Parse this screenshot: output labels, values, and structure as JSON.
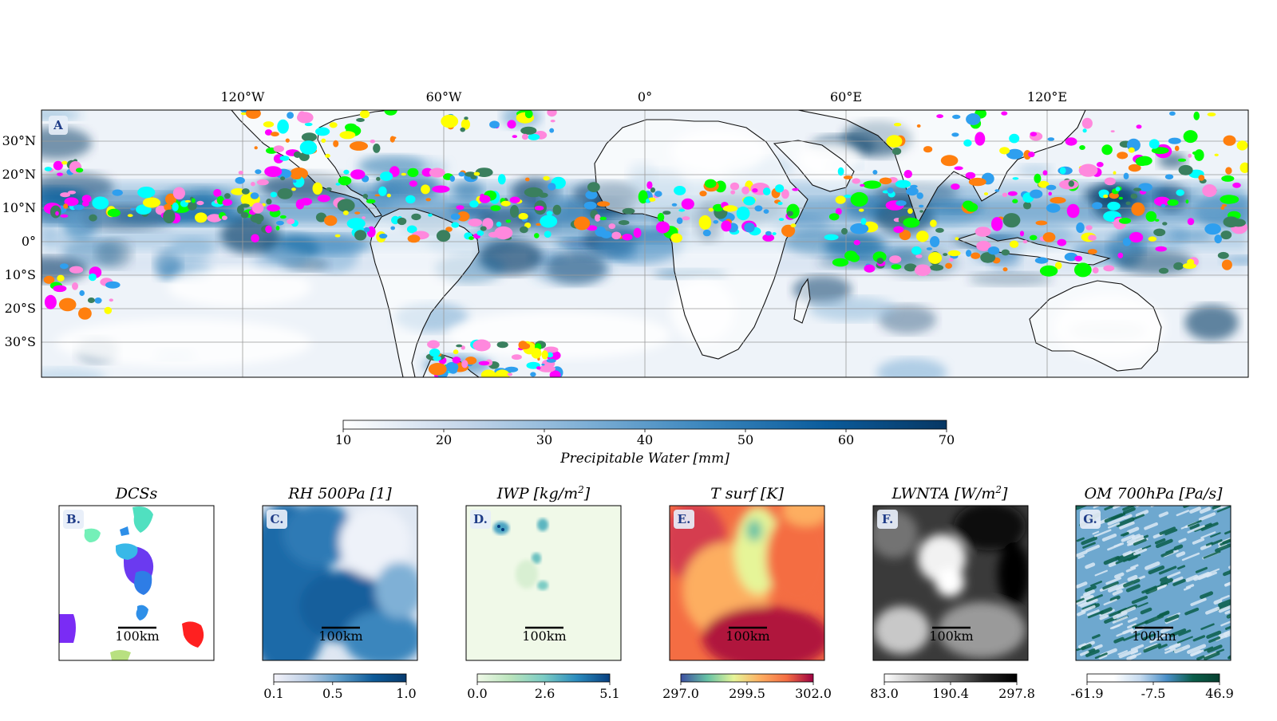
{
  "chart_data": [
    {
      "type": "heatmap",
      "panel_label": "A",
      "longitude_ticks": [
        "120°W",
        "60°W",
        "0°",
        "60°E",
        "120°E"
      ],
      "latitude_ticks": [
        "30°N",
        "20°N",
        "10°N",
        "0°",
        "10°S",
        "20°S",
        "30°S"
      ],
      "grid": true,
      "colorbar": {
        "label": "Precipitable Water [mm]",
        "ticks": [
          "10",
          "20",
          "30",
          "40",
          "50",
          "60",
          "70"
        ],
        "range": [
          10,
          70
        ],
        "colors": [
          "#ffffff",
          "#c5d6ea",
          "#7fb0d6",
          "#3b86bd",
          "#0b5c9c",
          "#073763"
        ]
      },
      "overlay": "DCS objects (multicolor)",
      "overlay_colors": [
        "#ff00ff",
        "#00ff00",
        "#00ffff",
        "#ffff00",
        "#ff7f0e",
        "#ff88dd",
        "#3a7f5e",
        "#2e9fef"
      ]
    },
    {
      "type": "heatmap",
      "panel_label": "B.",
      "title": "DCSs",
      "scale_bar": "100km",
      "blob_colors": [
        "#7a2cf5",
        "#2e8fe8",
        "#3cc8e6",
        "#74f0b8",
        "#ff2020",
        "#b8e080"
      ]
    },
    {
      "type": "heatmap",
      "panel_label": "C.",
      "title": "RH 500Pa [1]",
      "scale_bar": "100km",
      "colorbar": {
        "ticks": [
          "0.1",
          "0.5",
          "1.0"
        ],
        "range": [
          0.1,
          1.0
        ],
        "colors": [
          "#f4f3fa",
          "#bdcfe5",
          "#5d9cc9",
          "#0d5b99",
          "#083b6e"
        ]
      }
    },
    {
      "type": "heatmap",
      "panel_label": "D.",
      "title": "IWP [kg/m",
      "title_sup": "2",
      "title_end": "]",
      "scale_bar": "100km",
      "colorbar": {
        "ticks": [
          "0.0",
          "2.6",
          "5.1"
        ],
        "range": [
          0.0,
          5.1
        ],
        "colors": [
          "#f0f9e8",
          "#bae4bc",
          "#7bccc4",
          "#2b8cbe",
          "#084081"
        ]
      }
    },
    {
      "type": "heatmap",
      "panel_label": "E.",
      "title": "T surf [K]",
      "scale_bar": "100km",
      "colorbar": {
        "ticks": [
          "297.0",
          "299.5",
          "302.0"
        ],
        "range": [
          297.0,
          302.0
        ],
        "colors": [
          "#3d4fa1",
          "#66c2a5",
          "#e6f598",
          "#fdae61",
          "#f46d43",
          "#9e0142"
        ]
      }
    },
    {
      "type": "heatmap",
      "panel_label": "F.",
      "title": "LWNTA [W/m",
      "title_sup": "2",
      "title_end": "]",
      "scale_bar": "100km",
      "colorbar": {
        "ticks": [
          "83.0",
          "190.4",
          "297.8"
        ],
        "range": [
          83.0,
          297.8
        ],
        "colors": [
          "#ffffff",
          "#bdbdbd",
          "#737373",
          "#252525",
          "#000000"
        ]
      }
    },
    {
      "type": "heatmap",
      "panel_label": "G.",
      "title": "OM 700hPa [Pa/s]",
      "scale_bar": "100km",
      "colorbar": {
        "ticks": [
          "-61.9",
          "-7.5",
          "46.9"
        ],
        "range": [
          -61.9,
          46.9
        ],
        "colors": [
          "#ffffff",
          "#ffffff",
          "#c6dbef",
          "#4a8fc8",
          "#0b5e4a",
          "#08402f"
        ]
      }
    }
  ]
}
